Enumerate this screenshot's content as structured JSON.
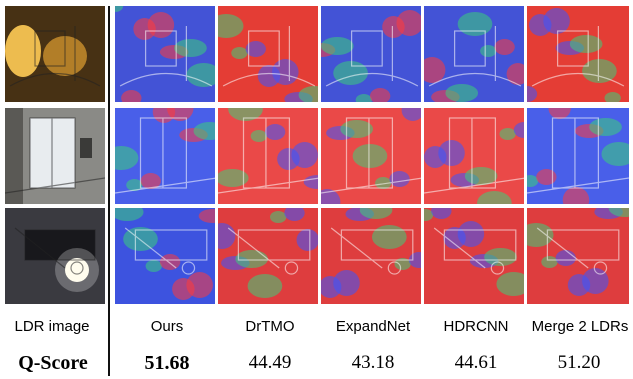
{
  "row_label_header": "LDR image",
  "metric_label": "Q-Score",
  "methods": [
    {
      "name": "Ours",
      "score": "51.68",
      "best": true,
      "overlay": "#3a55ff"
    },
    {
      "name": "DrTMO",
      "score": "44.49",
      "best": false,
      "overlay": "#ff3b3b"
    },
    {
      "name": "ExpandNet",
      "score": "43.18",
      "best": false,
      "overlay": "#ff3b3b"
    },
    {
      "name": "HDRCNN",
      "score": "44.61",
      "best": false,
      "overlay": "#ff3b3b"
    },
    {
      "name": "Merge 2 LDRs",
      "score": "51.20",
      "best": false,
      "overlay": "#ff3b3b"
    }
  ],
  "scenes": [
    {
      "scene": "panorama-interior",
      "base": "#6a4a1c"
    },
    {
      "scene": "office-doorway",
      "base": "#8a8a86"
    },
    {
      "scene": "night-lamp",
      "base": "#4a4a50"
    }
  ],
  "colors": {
    "red": "#ff3b3b",
    "blue": "#3a55ff",
    "green": "#3ad07a"
  }
}
